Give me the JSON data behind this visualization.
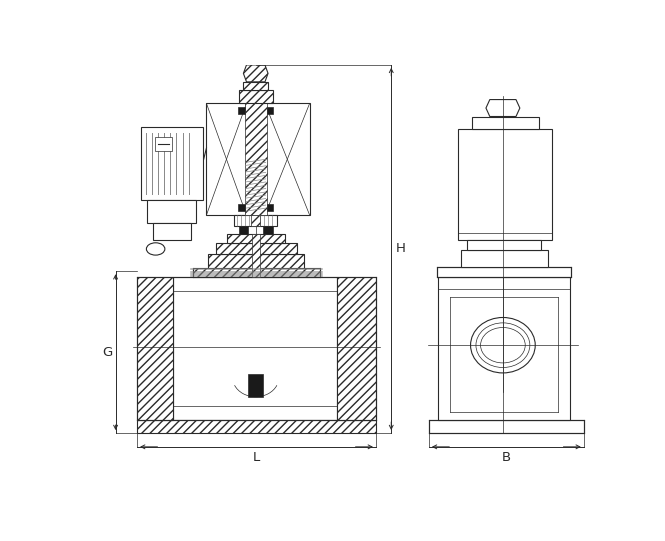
{
  "background_color": "#ffffff",
  "line_color": "#2a2a2a",
  "dim_color": "#2a2a2a",
  "figsize": [
    6.65,
    5.41
  ],
  "dpi": 100,
  "labels": {
    "H": "H",
    "G": "G",
    "L": "L",
    "B": "B"
  }
}
